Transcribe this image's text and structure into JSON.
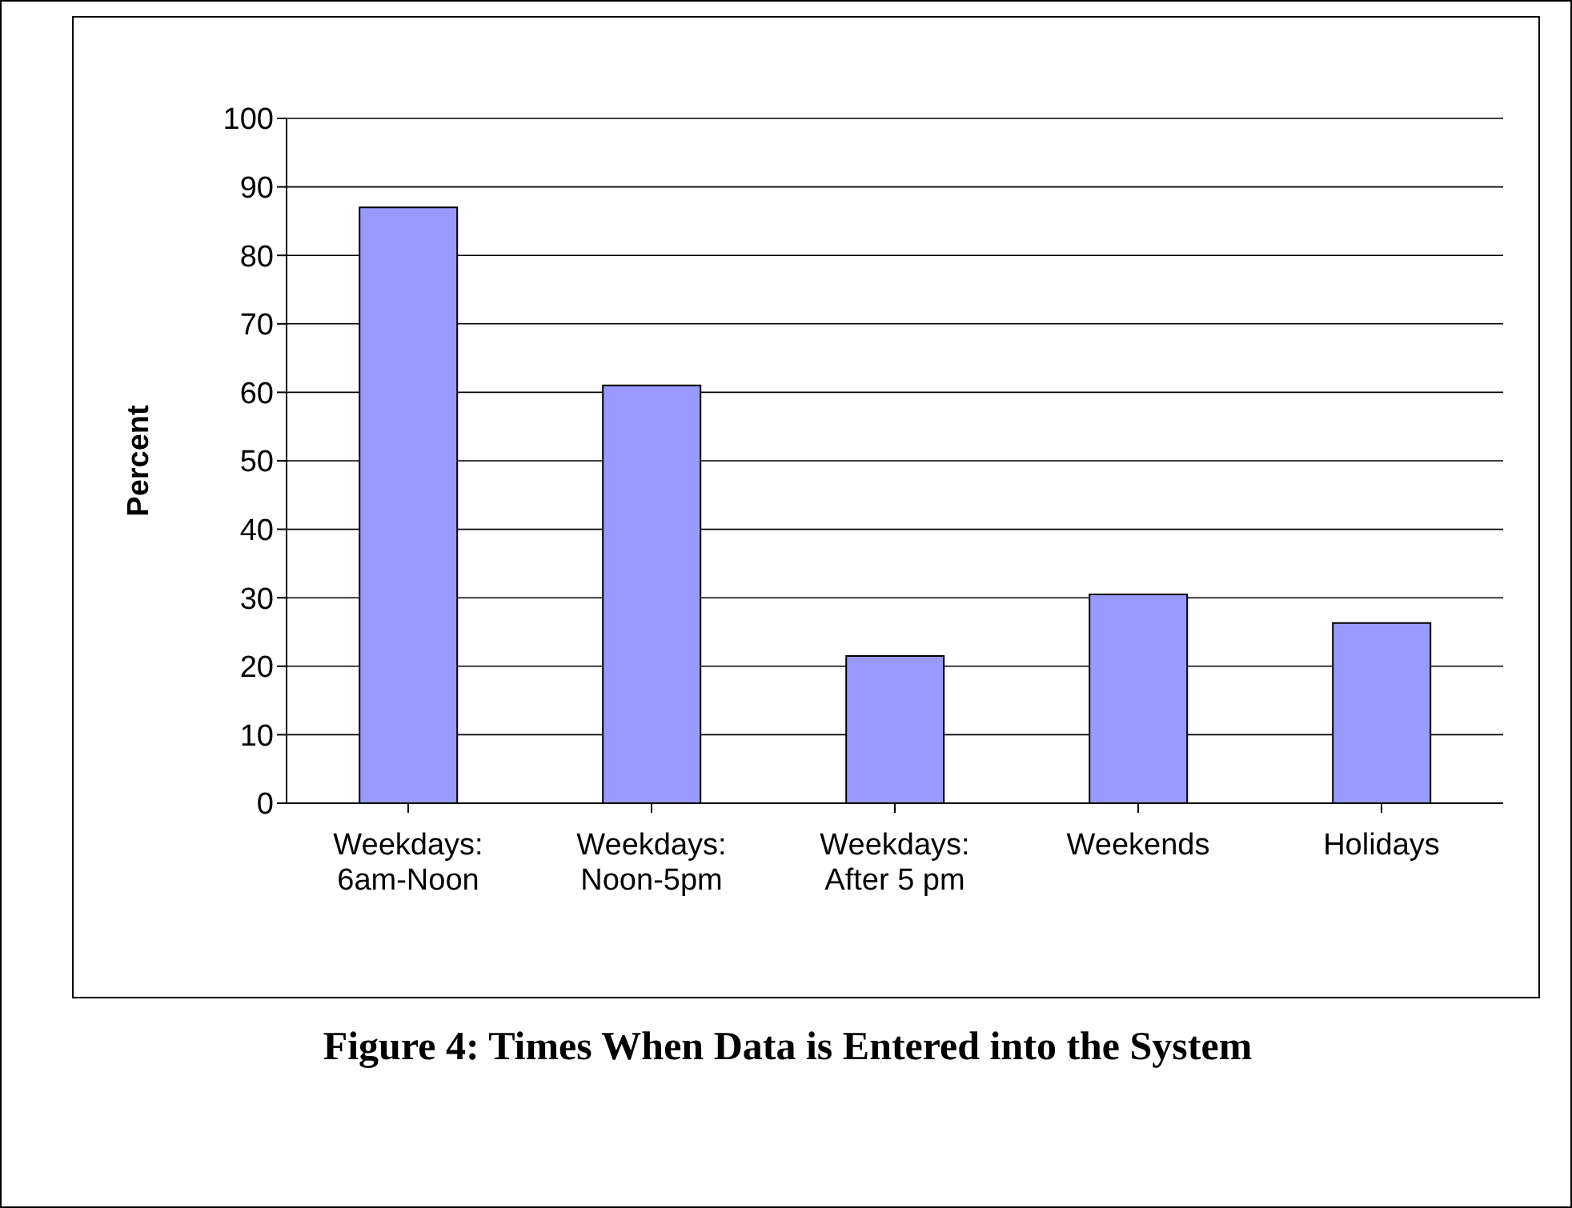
{
  "chart_data": {
    "type": "bar",
    "title": "Figure 4: Times When Data is Entered into the System",
    "ylabel": "Percent",
    "categories": [
      "Weekdays:\n6am-Noon",
      "Weekdays:\nNoon-5pm",
      "Weekdays:\nAfter 5 pm",
      "Weekends",
      "Holidays"
    ],
    "values": [
      87,
      61,
      21.5,
      30.5,
      26.3
    ],
    "color": "#9999ff",
    "ylim": [
      0,
      100
    ],
    "yticks": [
      0,
      10,
      20,
      30,
      40,
      50,
      60,
      70,
      80,
      90,
      100
    ],
    "grid": "y"
  }
}
